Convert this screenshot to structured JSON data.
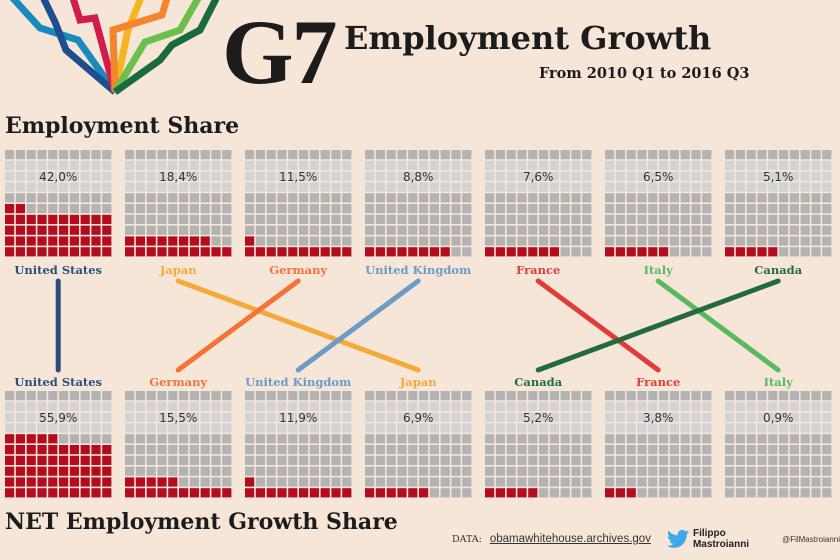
{
  "header": {
    "g7": "G7",
    "title": "Employment Growth",
    "subtitle": "From 2010 Q1 to 2016 Q3"
  },
  "sections": {
    "top": "Employment Share",
    "bottom": "NET Employment Growth Share"
  },
  "footer": {
    "data_label": "DATA:",
    "data_source": "obamawhitehouse.archives.gov",
    "icon": "twitter-bird-icon",
    "author": "Filippo Mastroianni",
    "handle": "@FilMastroianni"
  },
  "colors": {
    "filled": "#b30c20",
    "empty": "#b3b3b3",
    "label_band": "#d3d3d3",
    "background": "#f5e6d8"
  },
  "countries": {
    "United States": {
      "color": "#2e4d7b"
    },
    "Japan": {
      "color": "#f6a93b"
    },
    "Germany": {
      "color": "#f3733a"
    },
    "United Kingdom": {
      "color": "#6b9bc6"
    },
    "France": {
      "color": "#e03c3a"
    },
    "Italy": {
      "color": "#59b95e"
    },
    "Canada": {
      "color": "#236b3d"
    }
  },
  "chart_data": [
    {
      "type": "waffle",
      "title": "Employment Share",
      "grid": "10x10",
      "categories": [
        "United States",
        "Japan",
        "Germany",
        "United Kingdom",
        "France",
        "Italy",
        "Canada"
      ],
      "labels": [
        "42,0%",
        "18,4%",
        "11,5%",
        "8,8%",
        "7,6%",
        "6,5%",
        "5,1%"
      ],
      "values": [
        42.0,
        18.4,
        11.5,
        8.8,
        7.6,
        6.5,
        5.1
      ],
      "filled_cells": [
        42,
        18,
        11,
        8,
        7,
        6,
        5
      ]
    },
    {
      "type": "waffle",
      "title": "NET Employment Growth Share",
      "grid": "10x10",
      "categories": [
        "United States",
        "Germany",
        "United Kingdom",
        "Japan",
        "Canada",
        "France",
        "Italy"
      ],
      "labels": [
        "55,9%",
        "15,5%",
        "11,9%",
        "6,9%",
        "5,2%",
        "3,8%",
        "0,9%"
      ],
      "values": [
        55.9,
        15.5,
        11.9,
        6.9,
        5.2,
        3.8,
        0.9
      ],
      "filled_cells": [
        55,
        15,
        11,
        6,
        5,
        3,
        0
      ]
    },
    {
      "type": "slope",
      "title": "Rank change from Employment Share to NET Employment Growth Share",
      "ranks": [
        {
          "country": "United States",
          "from": 1,
          "to": 1
        },
        {
          "country": "Japan",
          "from": 2,
          "to": 4
        },
        {
          "country": "Germany",
          "from": 3,
          "to": 2
        },
        {
          "country": "United Kingdom",
          "from": 4,
          "to": 3
        },
        {
          "country": "France",
          "from": 5,
          "to": 6
        },
        {
          "country": "Italy",
          "from": 6,
          "to": 7
        },
        {
          "country": "Canada",
          "from": 7,
          "to": 5
        }
      ]
    }
  ]
}
